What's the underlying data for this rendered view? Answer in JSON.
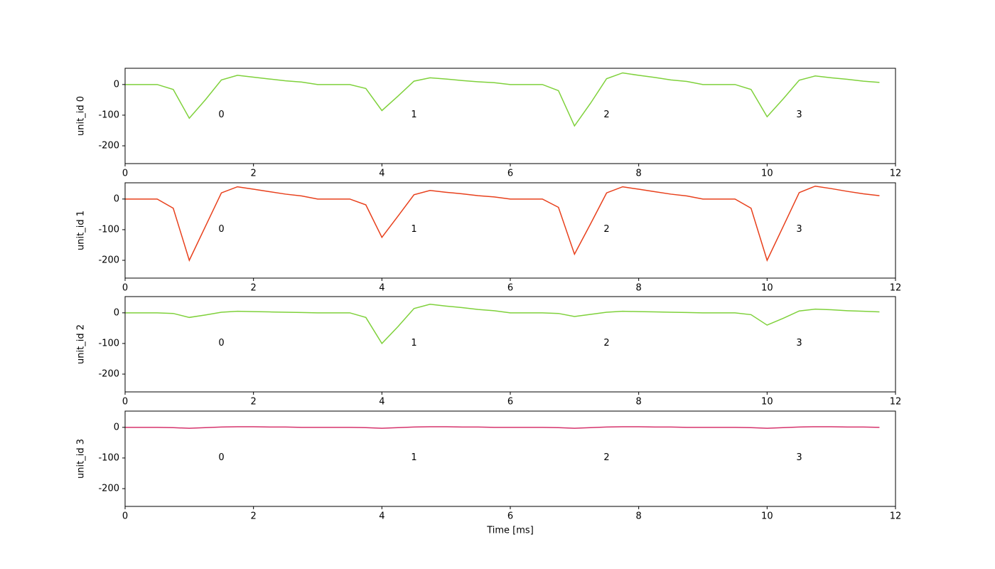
{
  "chart_data": [
    {
      "type": "line",
      "ylabel": "unit_id 0",
      "channel_labels": [
        "0",
        "1",
        "2",
        "3"
      ],
      "x": [
        0,
        0.25,
        0.5,
        0.75,
        1,
        1.25,
        1.5,
        1.75,
        2,
        2.25,
        2.5,
        2.75,
        3,
        3.25,
        3.5,
        3.75,
        4,
        4.25,
        4.5,
        4.75,
        5,
        5.25,
        5.5,
        5.75,
        6,
        6.25,
        6.5,
        6.75,
        7,
        7.25,
        7.5,
        7.75,
        8,
        8.25,
        8.5,
        8.75,
        9,
        9.25,
        9.5,
        9.75,
        10,
        10.25,
        10.5,
        10.75,
        11,
        11.25,
        11.5,
        11.75
      ],
      "series": [
        {
          "color": "#7fd13b",
          "values": [
            0,
            0,
            0,
            -16,
            -110,
            -50,
            15,
            30,
            24,
            18,
            12,
            8,
            0,
            0,
            0,
            -13,
            -85,
            -38,
            11,
            22,
            18,
            13,
            9,
            6,
            0,
            0,
            0,
            -20,
            -135,
            -61,
            19,
            38,
            30,
            23,
            15,
            10,
            0,
            0,
            0,
            -16,
            -105,
            -47,
            14,
            28,
            22,
            17,
            11,
            7
          ]
        }
      ],
      "xlim": [
        0,
        12
      ],
      "xticks": [
        0,
        2,
        4,
        6,
        8,
        10,
        12
      ],
      "ylim": [
        -258,
        53
      ],
      "yticks": [
        -200,
        -100,
        0
      ]
    },
    {
      "type": "line",
      "ylabel": "unit_id 1",
      "channel_labels": [
        "0",
        "1",
        "2",
        "3"
      ],
      "x": [
        0,
        0.25,
        0.5,
        0.75,
        1,
        1.25,
        1.5,
        1.75,
        2,
        2.25,
        2.5,
        2.75,
        3,
        3.25,
        3.5,
        3.75,
        4,
        4.25,
        4.5,
        4.75,
        5,
        5.25,
        5.5,
        5.75,
        6,
        6.25,
        6.5,
        6.75,
        7,
        7.25,
        7.5,
        7.75,
        8,
        8.25,
        8.5,
        8.75,
        9,
        9.25,
        9.5,
        9.75,
        10,
        10.25,
        10.5,
        10.75,
        11,
        11.25,
        11.5,
        11.75
      ],
      "series": [
        {
          "color": "#e8401c",
          "values": [
            0,
            0,
            0,
            -30,
            -200,
            -90,
            20,
            40,
            32,
            24,
            16,
            10,
            0,
            0,
            0,
            -19,
            -125,
            -56,
            14,
            28,
            22,
            17,
            11,
            7,
            0,
            0,
            0,
            -27,
            -180,
            -81,
            20,
            40,
            32,
            24,
            16,
            10,
            0,
            0,
            0,
            -30,
            -200,
            -90,
            21,
            42,
            34,
            25,
            17,
            11
          ]
        }
      ],
      "xlim": [
        0,
        12
      ],
      "xticks": [
        0,
        2,
        4,
        6,
        8,
        10,
        12
      ],
      "ylim": [
        -258,
        53
      ],
      "yticks": [
        -200,
        -100,
        0
      ]
    },
    {
      "type": "line",
      "ylabel": "unit_id 2",
      "channel_labels": [
        "0",
        "1",
        "2",
        "3"
      ],
      "x": [
        0,
        0.25,
        0.5,
        0.75,
        1,
        1.25,
        1.5,
        1.75,
        2,
        2.25,
        2.5,
        2.75,
        3,
        3.25,
        3.5,
        3.75,
        4,
        4.25,
        4.5,
        4.75,
        5,
        5.25,
        5.5,
        5.75,
        6,
        6.25,
        6.5,
        6.75,
        7,
        7.25,
        7.5,
        7.75,
        8,
        8.25,
        8.5,
        8.75,
        9,
        9.25,
        9.5,
        9.75,
        10,
        10.25,
        10.5,
        10.75,
        11,
        11.25,
        11.5,
        11.75
      ],
      "series": [
        {
          "color": "#7fd13b",
          "values": [
            0,
            0,
            0,
            -2,
            -15,
            -7,
            2,
            5,
            4,
            3,
            2,
            1,
            0,
            0,
            0,
            -15,
            -100,
            -45,
            14,
            28,
            22,
            17,
            11,
            7,
            0,
            0,
            0,
            -2,
            -12,
            -5,
            2,
            5,
            4,
            3,
            2,
            1,
            0,
            0,
            0,
            -6,
            -40,
            -18,
            6,
            12,
            10,
            7,
            5,
            3
          ]
        }
      ],
      "xlim": [
        0,
        12
      ],
      "xticks": [
        0,
        2,
        4,
        6,
        8,
        10,
        12
      ],
      "ylim": [
        -258,
        53
      ],
      "yticks": [
        -200,
        -100,
        0
      ]
    },
    {
      "type": "line",
      "ylabel": "unit_id 3",
      "xlabel": "Time [ms]",
      "channel_labels": [
        "0",
        "1",
        "2",
        "3"
      ],
      "x": [
        0,
        0.25,
        0.5,
        0.75,
        1,
        1.25,
        1.5,
        1.75,
        2,
        2.25,
        2.5,
        2.75,
        3,
        3.25,
        3.5,
        3.75,
        4,
        4.25,
        4.5,
        4.75,
        5,
        5.25,
        5.5,
        5.75,
        6,
        6.25,
        6.5,
        6.75,
        7,
        7.25,
        7.5,
        7.75,
        8,
        8.25,
        8.5,
        8.75,
        9,
        9.25,
        9.5,
        9.75,
        10,
        10.25,
        10.5,
        10.75,
        11,
        11.25,
        11.5,
        11.75
      ],
      "series": [
        {
          "color": "#d6336c",
          "values": [
            0,
            0,
            0,
            -1,
            -3,
            -1,
            1,
            2,
            2,
            1,
            1,
            0,
            0,
            0,
            0,
            -1,
            -3,
            -1,
            1,
            2,
            2,
            1,
            1,
            0,
            0,
            0,
            0,
            -1,
            -3,
            -1,
            1,
            2,
            2,
            1,
            1,
            0,
            0,
            0,
            0,
            -1,
            -3,
            -1,
            1,
            2,
            2,
            1,
            1,
            0
          ]
        }
      ],
      "xlim": [
        0,
        12
      ],
      "xticks": [
        0,
        2,
        4,
        6,
        8,
        10,
        12
      ],
      "ylim": [
        -258,
        53
      ],
      "yticks": [
        -200,
        -100,
        0
      ]
    }
  ]
}
